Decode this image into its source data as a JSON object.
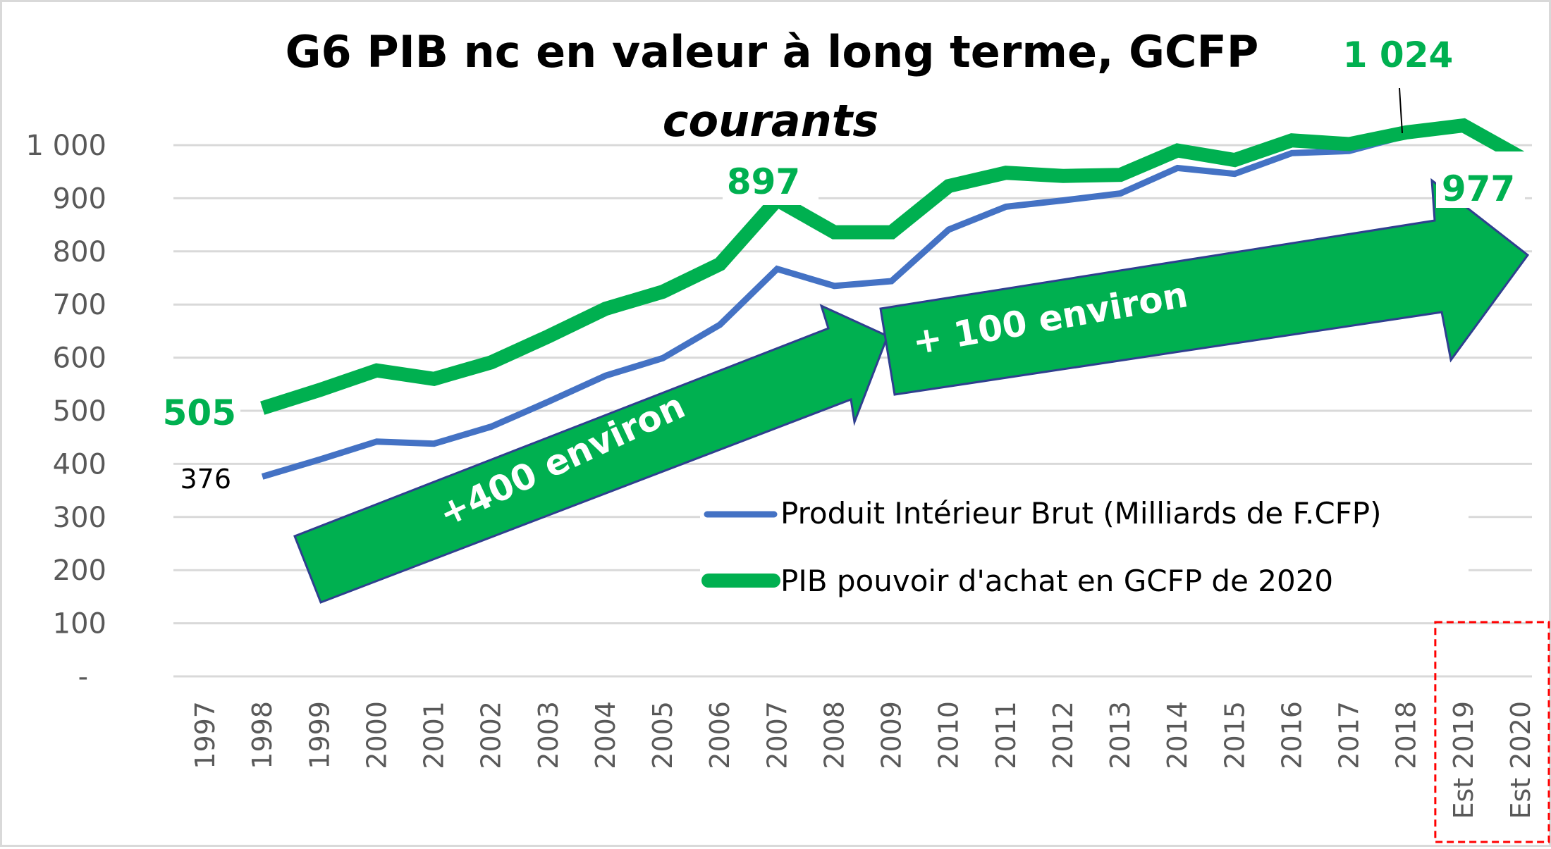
{
  "chart_data": {
    "type": "line",
    "title": "G6  PIB nc en valeur à long terme, GCFP",
    "subtitle": "courants",
    "xlabel": "",
    "ylabel": "",
    "ylim": [
      0,
      1000
    ],
    "grid": true,
    "legend_position": "bottom-right",
    "yticks": [
      "-",
      "100",
      "200",
      "300",
      "400",
      "500",
      "600",
      "700",
      "800",
      "900",
      "1 000"
    ],
    "categories": [
      "1997",
      "1998",
      "1999",
      "2000",
      "2001",
      "2002",
      "2003",
      "2004",
      "2005",
      "2006",
      "2007",
      "2008",
      "2009",
      "2010",
      "2011",
      "2012",
      "2013",
      "2014",
      "2015",
      "2016",
      "2017",
      "2018",
      "Est 2019",
      "Est 2020"
    ],
    "series": [
      {
        "name": "Produit Intérieur Brut (Milliards de F.CFP)",
        "color": "#4472c4",
        "values": [
          null,
          376,
          408,
          442,
          438,
          470,
          517,
          566,
          599,
          662,
          767,
          735,
          744,
          841,
          884,
          896,
          909,
          957,
          946,
          985,
          989,
          1018,
          1033,
          975
        ]
      },
      {
        "name": "PIB pouvoir d'achat en GCFP de 2020",
        "color": "#00b050",
        "values": [
          null,
          505,
          539,
          576,
          560,
          591,
          640,
          692,
          724,
          776,
          897,
          836,
          836,
          923,
          948,
          942,
          944,
          990,
          972,
          1009,
          1002,
          1024,
          1037,
          977
        ]
      }
    ],
    "annotations": {
      "data_labels": [
        {
          "series": 1,
          "category": "1998",
          "text": "376"
        },
        {
          "series": 2,
          "category": "1998",
          "text": "505"
        },
        {
          "series": 2,
          "category": "2007",
          "text": "897"
        },
        {
          "series": 2,
          "category": "2018",
          "text": "1 024"
        },
        {
          "series": 2,
          "category": "Est 2020",
          "text": "977"
        }
      ],
      "arrows": [
        {
          "text": "+400 environ",
          "from": "1998",
          "to": "2009"
        },
        {
          "text": "+ 100 environ",
          "from": "2009",
          "to": "Est 2020"
        }
      ],
      "highlight_box": {
        "categories": [
          "Est 2019",
          "Est 2020"
        ],
        "color": "#ff0000"
      }
    }
  }
}
